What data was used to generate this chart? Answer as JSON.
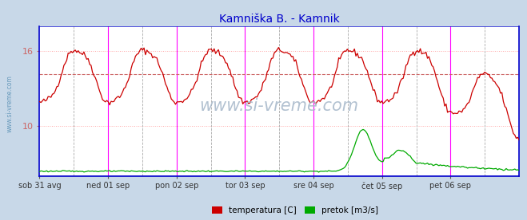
{
  "title": "Kamniška B. - Kamnik",
  "title_color": "#0000cc",
  "fig_bg_color": "#c8d8e8",
  "plot_bg_color": "#ffffff",
  "ylim": [
    6,
    18
  ],
  "ylim_right": [
    0,
    25
  ],
  "yticks": [
    10,
    16
  ],
  "xlabel_days": [
    "sob 31 avg",
    "ned 01 sep",
    "pon 02 sep",
    "tor 03 sep",
    "sre 04 sep",
    "čet 05 sep",
    "pet 06 sep"
  ],
  "temp_color": "#cc0000",
  "flow_color": "#00aa00",
  "avg_line_color": "#cc6666",
  "hgrid_color": "#ffaaaa",
  "vline_solid_color": "#ff00ff",
  "vline_dash_color": "#aaaaaa",
  "border_color": "#0000cc",
  "watermark": "www.si-vreme.com",
  "watermark_color": "#aabbcc",
  "side_text": "www.si-vreme.com",
  "side_text_color": "#6699bb",
  "legend_temp": "temperatura [C]",
  "legend_flow": "pretok [m3/s]",
  "n_points": 336,
  "temp_avg": 14.2,
  "temp_seed": 42,
  "flow_seed": 123
}
